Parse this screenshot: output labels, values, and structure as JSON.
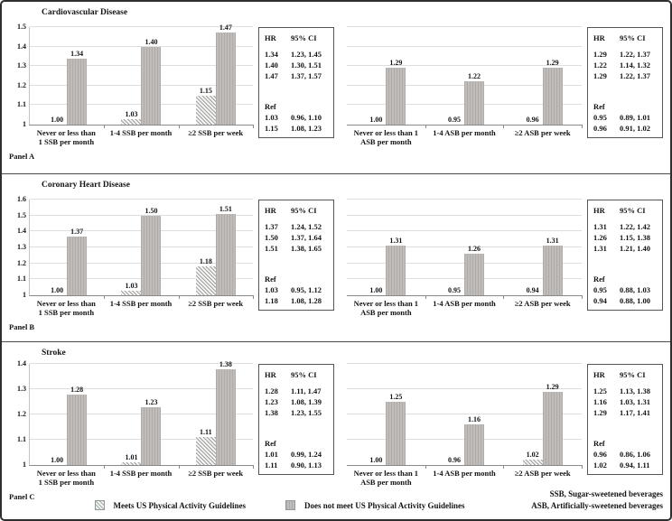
{
  "panels": [
    {
      "label": "Panel A",
      "title": "Cardiovascular Disease"
    },
    {
      "label": "Panel B",
      "title": "Coronary Heart Disease"
    },
    {
      "label": "Panel C",
      "title": "Stroke"
    }
  ],
  "legend": {
    "meets": "Meets US Physical Activity Guidelines",
    "does_not_meet": "Does not meet US Physical Activity Guidelines"
  },
  "footnotes": [
    "SSB, Sugar-sweetened beverages",
    "ASB, Artificially-sweetened beverages"
  ],
  "colors": {
    "bar_gray_dark": "#aeaba8",
    "bar_gray_light": "#bfbcb9",
    "hatch_gray": "#9f9f9f",
    "gridline": "#dedede"
  },
  "chart_data": [
    {
      "type": "bar",
      "panel": "A",
      "disease": "Cardiovascular Disease",
      "beverage": "SSB",
      "categories": [
        "Never or less than 1 SSB per month",
        "1-4 SSB per month",
        "≥2 SSB per week"
      ],
      "series": [
        {
          "name": "Meets US Physical Activity Guidelines",
          "values": [
            1.0,
            1.03,
            1.15
          ]
        },
        {
          "name": "Does not meet US Physical Activity Guidelines",
          "values": [
            1.34,
            1.4,
            1.47
          ]
        }
      ],
      "ylim": [
        1,
        1.5
      ],
      "ytick_step": 0.1,
      "show_y_labels": true,
      "grid": true,
      "legend_position": "bottom",
      "hr_table": {
        "header": [
          "HR",
          "95% CI"
        ],
        "top_rows": [
          [
            "1.34",
            "1.23, 1.45"
          ],
          [
            "1.40",
            "1.30, 1.51"
          ],
          [
            "1.47",
            "1.37, 1.57"
          ]
        ],
        "ref_label": "Ref",
        "bottom_rows": [
          [
            "1.03",
            "0.96, 1.10"
          ],
          [
            "1.15",
            "1.08, 1.23"
          ]
        ]
      }
    },
    {
      "type": "bar",
      "panel": "A",
      "disease": "Cardiovascular Disease",
      "beverage": "ASB",
      "categories": [
        "Never or less than 1 ASB per month",
        "1-4 ASB per month",
        "≥2 ASB per week"
      ],
      "series": [
        {
          "name": "Meets US Physical Activity Guidelines",
          "values": [
            1.0,
            0.95,
            0.96
          ]
        },
        {
          "name": "Does not meet US Physical Activity Guidelines",
          "values": [
            1.29,
            1.22,
            1.29
          ]
        }
      ],
      "ylim": [
        1,
        1.5
      ],
      "ytick_step": 0.1,
      "show_y_labels": false,
      "grid": true,
      "legend_position": "bottom",
      "hr_table": {
        "header": [
          "HR",
          "95% CI"
        ],
        "top_rows": [
          [
            "1.29",
            "1.22, 1.37"
          ],
          [
            "1.22",
            "1.14, 1.32"
          ],
          [
            "1.29",
            "1.22, 1.37"
          ]
        ],
        "ref_label": "Ref",
        "bottom_rows": [
          [
            "0.95",
            "0.89, 1.01"
          ],
          [
            "0.96",
            "0.91, 1.02"
          ]
        ]
      }
    },
    {
      "type": "bar",
      "panel": "B",
      "disease": "Coronary Heart Disease",
      "beverage": "SSB",
      "categories": [
        "Never or less than 1 SSB per month",
        "1-4 SSB per month",
        "≥2 SSB per week"
      ],
      "series": [
        {
          "name": "Meets US Physical Activity Guidelines",
          "values": [
            1.0,
            1.03,
            1.18
          ]
        },
        {
          "name": "Does not meet US Physical Activity Guidelines",
          "values": [
            1.37,
            1.5,
            1.51
          ]
        }
      ],
      "ylim": [
        1,
        1.6
      ],
      "ytick_step": 0.1,
      "show_y_labels": true,
      "grid": true,
      "legend_position": "bottom",
      "hr_table": {
        "header": [
          "HR",
          "95% CI"
        ],
        "top_rows": [
          [
            "1.37",
            "1.24, 1.52"
          ],
          [
            "1.50",
            "1.37, 1.64"
          ],
          [
            "1.51",
            "1.38, 1.65"
          ]
        ],
        "ref_label": "Ref",
        "bottom_rows": [
          [
            "1.03",
            "0.95, 1.12"
          ],
          [
            "1.18",
            "1.08, 1.28"
          ]
        ]
      }
    },
    {
      "type": "bar",
      "panel": "B",
      "disease": "Coronary Heart Disease",
      "beverage": "ASB",
      "categories": [
        "Never or less than 1 ASB per month",
        "1-4 ASB per month",
        "≥2 ASB per week"
      ],
      "series": [
        {
          "name": "Meets US Physical Activity Guidelines",
          "values": [
            1.0,
            0.95,
            0.94
          ]
        },
        {
          "name": "Does not meet US Physical Activity Guidelines",
          "values": [
            1.31,
            1.26,
            1.31
          ]
        }
      ],
      "ylim": [
        1,
        1.6
      ],
      "ytick_step": 0.1,
      "show_y_labels": false,
      "grid": true,
      "legend_position": "bottom",
      "hr_table": {
        "header": [
          "HR",
          "95% CI"
        ],
        "top_rows": [
          [
            "1.31",
            "1.22, 1.42"
          ],
          [
            "1.26",
            "1.15, 1.38"
          ],
          [
            "1.31",
            "1.21, 1.40"
          ]
        ],
        "ref_label": "Ref",
        "bottom_rows": [
          [
            "0.95",
            "0.88, 1.03"
          ],
          [
            "0.94",
            "0.88, 1.00"
          ]
        ]
      }
    },
    {
      "type": "bar",
      "panel": "C",
      "disease": "Stroke",
      "beverage": "SSB",
      "categories": [
        "Never or less than 1 SSB per month",
        "1-4 SSB per month",
        "≥2 SSB per week"
      ],
      "series": [
        {
          "name": "Meets US Physical Activity Guidelines",
          "values": [
            1.0,
            1.01,
            1.11
          ]
        },
        {
          "name": "Does not meet US Physical Activity Guidelines",
          "values": [
            1.28,
            1.23,
            1.38
          ]
        }
      ],
      "ylim": [
        1,
        1.4
      ],
      "ytick_step": 0.1,
      "show_y_labels": true,
      "grid": true,
      "legend_position": "bottom",
      "hr_table": {
        "header": [
          "HR",
          "95% CI"
        ],
        "top_rows": [
          [
            "1.28",
            "1.11, 1.47"
          ],
          [
            "1.23",
            "1.08, 1.39"
          ],
          [
            "1.38",
            "1.23, 1.55"
          ]
        ],
        "ref_label": "Ref",
        "bottom_rows": [
          [
            "1.01",
            "0.99, 1.24"
          ],
          [
            "1.11",
            "0.90, 1.13"
          ]
        ]
      }
    },
    {
      "type": "bar",
      "panel": "C",
      "disease": "Stroke",
      "beverage": "ASB",
      "categories": [
        "Never or less than 1 ASB per month",
        "1-4 ASB per month",
        "≥2 ASB per week"
      ],
      "series": [
        {
          "name": "Meets US Physical Activity Guidelines",
          "values": [
            1.0,
            0.96,
            1.02
          ]
        },
        {
          "name": "Does not meet US Physical Activity Guidelines",
          "values": [
            1.25,
            1.16,
            1.29
          ]
        }
      ],
      "ylim": [
        1,
        1.4
      ],
      "ytick_step": 0.1,
      "show_y_labels": false,
      "grid": true,
      "legend_position": "bottom",
      "hr_table": {
        "header": [
          "HR",
          "95% CI"
        ],
        "top_rows": [
          [
            "1.25",
            "1.13, 1.38"
          ],
          [
            "1.16",
            "1.03, 1.31"
          ],
          [
            "1.29",
            "1.17, 1.41"
          ]
        ],
        "ref_label": "Ref",
        "bottom_rows": [
          [
            "0.96",
            "0.86, 1.06"
          ],
          [
            "1.02",
            "0.94, 1.11"
          ]
        ]
      }
    }
  ]
}
